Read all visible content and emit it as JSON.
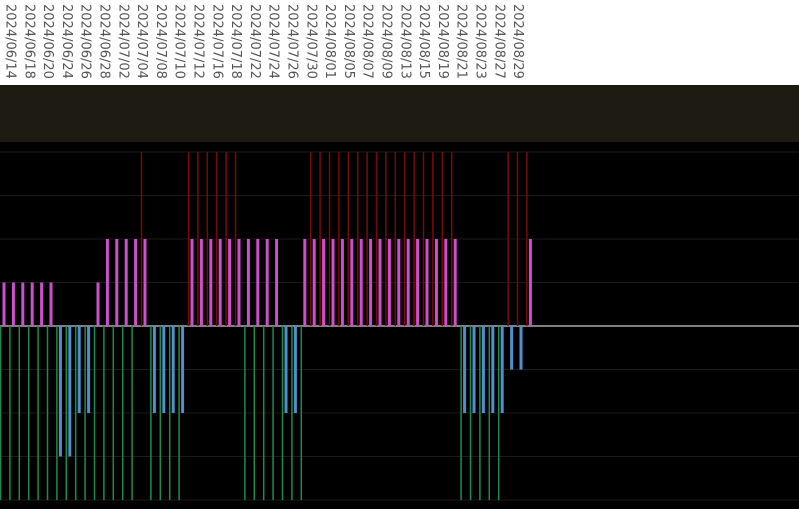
{
  "chart_data": {
    "type": "bar",
    "categories": [
      "2024/06/14",
      null,
      "2024/06/18",
      null,
      "2024/06/20",
      null,
      "2024/06/24",
      null,
      "2024/06/26",
      null,
      "2024/06/28",
      null,
      "2024/07/02",
      null,
      "2024/07/04",
      null,
      "2024/07/08",
      null,
      "2024/07/10",
      null,
      "2024/07/12",
      null,
      "2024/07/16",
      null,
      "2024/07/18",
      null,
      "2024/07/22",
      null,
      "2024/07/24",
      null,
      "2024/07/26",
      null,
      "2024/07/30",
      null,
      "2024/08/01",
      null,
      "2024/08/05",
      null,
      "2024/08/07",
      null,
      "2024/08/09",
      null,
      "2024/08/13",
      null,
      "2024/08/15",
      null,
      "2024/08/19",
      null,
      "2024/08/21",
      null,
      "2024/08/23",
      null,
      "2024/08/27",
      null,
      "2024/08/29",
      null,
      null
    ],
    "series": [
      {
        "type": "vline",
        "color": "#7a0a0a",
        "values": [
          null,
          null,
          null,
          null,
          null,
          null,
          null,
          null,
          null,
          null,
          null,
          null,
          null,
          null,
          null,
          4,
          null,
          null,
          null,
          null,
          4,
          4,
          4,
          4,
          4,
          4,
          null,
          null,
          null,
          null,
          null,
          null,
          null,
          4,
          4,
          4,
          4,
          4,
          4,
          4,
          4,
          4,
          4,
          4,
          4,
          4,
          4,
          4,
          4,
          null,
          null,
          null,
          null,
          null,
          4,
          4,
          4
        ]
      },
      {
        "type": "vline",
        "color": "#1f8a4c",
        "values": [
          -4,
          -4,
          -4,
          -4,
          -4,
          -4,
          -4,
          -4,
          -4,
          -4,
          -4,
          -4,
          -4,
          -4,
          -4,
          null,
          -4,
          -4,
          -4,
          -4,
          null,
          null,
          null,
          null,
          null,
          null,
          -4,
          -4,
          -4,
          -4,
          -4,
          -4,
          -4,
          null,
          null,
          null,
          null,
          null,
          null,
          null,
          null,
          null,
          null,
          null,
          null,
          null,
          null,
          null,
          null,
          -4,
          -4,
          -4,
          -4,
          -4,
          null,
          null,
          null
        ]
      },
      {
        "type": "bar",
        "color": "#cc4fcc",
        "values": [
          1,
          1,
          1,
          1,
          1,
          1,
          null,
          null,
          null,
          null,
          1,
          2,
          2,
          2,
          2,
          2,
          null,
          null,
          null,
          null,
          2,
          2,
          2,
          2,
          2,
          2,
          2,
          2,
          2,
          2,
          null,
          null,
          2,
          2,
          2,
          2,
          2,
          2,
          2,
          2,
          2,
          2,
          2,
          2,
          2,
          2,
          2,
          2,
          2,
          null,
          null,
          null,
          null,
          null,
          null,
          null,
          2
        ]
      },
      {
        "type": "bar",
        "color": "#4f8fcc",
        "values": [
          null,
          null,
          null,
          null,
          null,
          null,
          -3,
          -3,
          -2,
          -2,
          null,
          null,
          null,
          null,
          null,
          null,
          -2,
          -2,
          -2,
          -2,
          null,
          null,
          null,
          null,
          null,
          null,
          null,
          null,
          null,
          null,
          -2,
          -2,
          null,
          null,
          null,
          null,
          null,
          null,
          null,
          null,
          null,
          null,
          null,
          null,
          null,
          null,
          null,
          null,
          null,
          -2,
          -2,
          -2,
          -2,
          -2,
          -1,
          -1,
          null
        ]
      }
    ],
    "ylim": [
      -4,
      4
    ],
    "yticks": [
      -4,
      -3,
      -2,
      -1,
      0,
      1,
      2,
      3,
      4
    ],
    "grid": true
  }
}
